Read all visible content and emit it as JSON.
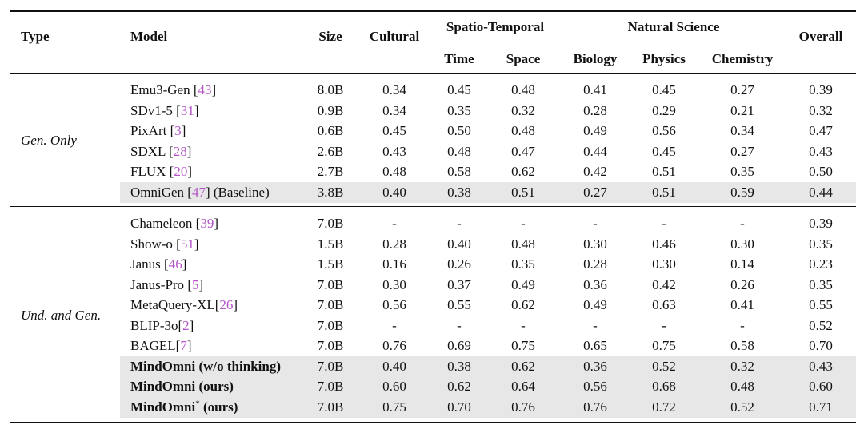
{
  "headers": {
    "type": "Type",
    "model": "Model",
    "size": "Size",
    "cultural": "Cultural",
    "spatio_temporal": "Spatio-Temporal",
    "time": "Time",
    "space": "Space",
    "natural_science": "Natural Science",
    "biology": "Biology",
    "physics": "Physics",
    "chemistry": "Chemistry",
    "overall": "Overall"
  },
  "groups": [
    {
      "type": "Gen. Only",
      "rows": [
        {
          "model": "Emu3-Gen ",
          "ref": "43",
          "suffix": "]",
          "bold": false,
          "sup": "",
          "size": "8.0B",
          "cultural": "0.34",
          "time": "0.45",
          "space": "0.48",
          "biology": "0.41",
          "physics": "0.45",
          "chemistry": "0.27",
          "overall": "0.39",
          "shaded": false
        },
        {
          "model": "SDv1-5 ",
          "ref": "31",
          "suffix": "]",
          "bold": false,
          "sup": "",
          "size": "0.9B",
          "cultural": "0.34",
          "time": "0.35",
          "space": "0.32",
          "biology": "0.28",
          "physics": "0.29",
          "chemistry": "0.21",
          "overall": "0.32",
          "shaded": false
        },
        {
          "model": "PixArt ",
          "ref": "3",
          "suffix": "]",
          "bold": false,
          "sup": "",
          "size": "0.6B",
          "cultural": "0.45",
          "time": "0.50",
          "space": "0.48",
          "biology": "0.49",
          "physics": "0.56",
          "chemistry": "0.34",
          "overall": "0.47",
          "shaded": false
        },
        {
          "model": "SDXL ",
          "ref": "28",
          "suffix": "]",
          "bold": false,
          "sup": "",
          "size": "2.6B",
          "cultural": "0.43",
          "time": "0.48",
          "space": "0.47",
          "biology": "0.44",
          "physics": "0.45",
          "chemistry": "0.27",
          "overall": "0.43",
          "shaded": false
        },
        {
          "model": "FLUX ",
          "ref": "20",
          "suffix": "]",
          "bold": false,
          "sup": "",
          "size": "2.7B",
          "cultural": "0.48",
          "time": "0.58",
          "space": "0.62",
          "biology": "0.42",
          "physics": "0.51",
          "chemistry": "0.35",
          "overall": "0.50",
          "shaded": false
        },
        {
          "model": "OmniGen ",
          "ref": "47",
          "suffix": "] (Baseline)",
          "bold": false,
          "sup": "",
          "size": "3.8B",
          "cultural": "0.40",
          "time": "0.38",
          "space": "0.51",
          "biology": "0.27",
          "physics": "0.51",
          "chemistry": "0.59",
          "overall": "0.44",
          "shaded": true
        }
      ]
    },
    {
      "type": "Und. and Gen.",
      "rows": [
        {
          "model": "Chameleon ",
          "ref": "39",
          "suffix": "]",
          "bold": false,
          "sup": "",
          "size": "7.0B",
          "cultural": "-",
          "time": "-",
          "space": "-",
          "biology": "-",
          "physics": "-",
          "chemistry": "-",
          "overall": "0.39",
          "shaded": false
        },
        {
          "model": "Show-o ",
          "ref": "51",
          "suffix": "]",
          "bold": false,
          "sup": "",
          "size": "1.5B",
          "cultural": "0.28",
          "time": "0.40",
          "space": "0.48",
          "biology": "0.30",
          "physics": "0.46",
          "chemistry": "0.30",
          "overall": "0.35",
          "shaded": false
        },
        {
          "model": "Janus ",
          "ref": "46",
          "suffix": "]",
          "bold": false,
          "sup": "",
          "size": "1.5B",
          "cultural": "0.16",
          "time": "0.26",
          "space": "0.35",
          "biology": "0.28",
          "physics": "0.30",
          "chemistry": "0.14",
          "overall": "0.23",
          "shaded": false
        },
        {
          "model": "Janus-Pro ",
          "ref": "5",
          "suffix": "]",
          "bold": false,
          "sup": "",
          "size": "7.0B",
          "cultural": "0.30",
          "time": "0.37",
          "space": "0.49",
          "biology": "0.36",
          "physics": "0.42",
          "chemistry": "0.26",
          "overall": "0.35",
          "shaded": false
        },
        {
          "model": "MetaQuery-XL",
          "ref": "26",
          "suffix": "]",
          "bold": false,
          "sup": "",
          "size": "7.0B",
          "cultural": "0.56",
          "time": "0.55",
          "space": "0.62",
          "biology": "0.49",
          "physics": "0.63",
          "chemistry": "0.41",
          "overall": "0.55",
          "shaded": false
        },
        {
          "model": "BLIP-3o",
          "ref": "2",
          "suffix": "]",
          "bold": false,
          "sup": "",
          "size": "7.0B",
          "cultural": "-",
          "time": "-",
          "space": "-",
          "biology": "-",
          "physics": "-",
          "chemistry": "-",
          "overall": "0.52",
          "shaded": false
        },
        {
          "model": "BAGEL",
          "ref": "7",
          "suffix": "]",
          "bold": false,
          "sup": "",
          "size": "7.0B",
          "cultural": "0.76",
          "time": "0.69",
          "space": "0.75",
          "biology": "0.65",
          "physics": "0.75",
          "chemistry": "0.58",
          "overall": "0.70",
          "shaded": false
        },
        {
          "model": "MindOmni (w/o thinking)",
          "ref": "",
          "suffix": "",
          "bold": true,
          "sup": "",
          "size": "7.0B",
          "cultural": "0.40",
          "time": "0.38",
          "space": "0.62",
          "biology": "0.36",
          "physics": "0.52",
          "chemistry": "0.32",
          "overall": "0.43",
          "shaded": true
        },
        {
          "model": "MindOmni (ours)",
          "ref": "",
          "suffix": "",
          "bold": true,
          "sup": "",
          "size": "7.0B",
          "cultural": "0.60",
          "time": "0.62",
          "space": "0.64",
          "biology": "0.56",
          "physics": "0.68",
          "chemistry": "0.48",
          "overall": "0.60",
          "shaded": true
        },
        {
          "model": "MindOmni",
          "ref": "",
          "suffix": " (ours)",
          "bold": true,
          "sup": "*",
          "size": "7.0B",
          "cultural": "0.75",
          "time": "0.70",
          "space": "0.76",
          "biology": "0.76",
          "physics": "0.72",
          "chemistry": "0.52",
          "overall": "0.71",
          "shaded": true
        }
      ]
    }
  ]
}
